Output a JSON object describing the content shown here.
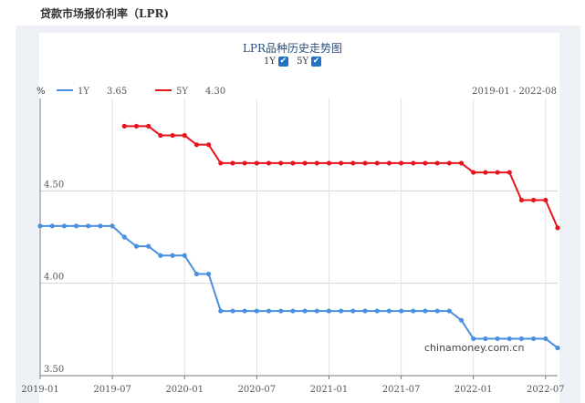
{
  "page_title": "贷款市场报价利率（LPR)",
  "chart_title": "LPR品种历史走势图",
  "toggles": [
    {
      "label": "1Y",
      "checked": true
    },
    {
      "label": "5Y",
      "checked": true
    }
  ],
  "check_glyph": "✔",
  "unit_label": "%",
  "date_range": "2019-01 - 2022-08",
  "watermark": "chinamoney.com.cn",
  "chart_data": {
    "type": "line",
    "x": [
      "2019-01",
      "2019-02",
      "2019-03",
      "2019-04",
      "2019-05",
      "2019-06",
      "2019-07",
      "2019-08",
      "2019-09",
      "2019-10",
      "2019-11",
      "2019-12",
      "2020-01",
      "2020-02",
      "2020-03",
      "2020-04",
      "2020-05",
      "2020-06",
      "2020-07",
      "2020-08",
      "2020-09",
      "2020-10",
      "2020-11",
      "2020-12",
      "2021-01",
      "2021-02",
      "2021-03",
      "2021-04",
      "2021-05",
      "2021-06",
      "2021-07",
      "2021-08",
      "2021-09",
      "2021-10",
      "2021-11",
      "2021-12",
      "2022-01",
      "2022-02",
      "2022-03",
      "2022-04",
      "2022-05",
      "2022-06",
      "2022-07",
      "2022-08"
    ],
    "series": [
      {
        "name": "1Y",
        "latest": "3.65",
        "color": "#4a8fe0",
        "values": [
          4.31,
          4.31,
          4.31,
          4.31,
          4.31,
          4.31,
          4.31,
          4.25,
          4.2,
          4.2,
          4.15,
          4.15,
          4.15,
          4.05,
          4.05,
          3.85,
          3.85,
          3.85,
          3.85,
          3.85,
          3.85,
          3.85,
          3.85,
          3.85,
          3.85,
          3.85,
          3.85,
          3.85,
          3.85,
          3.85,
          3.85,
          3.85,
          3.85,
          3.85,
          3.85,
          3.8,
          3.7,
          3.7,
          3.7,
          3.7,
          3.7,
          3.7,
          3.7,
          3.65
        ]
      },
      {
        "name": "5Y",
        "latest": "4.30",
        "color": "#e8141c",
        "values": [
          null,
          null,
          null,
          null,
          null,
          null,
          null,
          4.85,
          4.85,
          4.85,
          4.8,
          4.8,
          4.8,
          4.75,
          4.75,
          4.65,
          4.65,
          4.65,
          4.65,
          4.65,
          4.65,
          4.65,
          4.65,
          4.65,
          4.65,
          4.65,
          4.65,
          4.65,
          4.65,
          4.65,
          4.65,
          4.65,
          4.65,
          4.65,
          4.65,
          4.65,
          4.6,
          4.6,
          4.6,
          4.6,
          4.45,
          4.45,
          4.45,
          4.3
        ]
      }
    ],
    "x_tick_labels": [
      "2019-01",
      "2019-07",
      "2020-01",
      "2020-07",
      "2021-01",
      "2021-07",
      "2022-01",
      "2022-07"
    ],
    "y_ticks": [
      "3.50",
      "4.00",
      "4.50"
    ],
    "ylim": [
      3.5,
      5.0
    ],
    "grid": true,
    "legend_position": "top-left"
  }
}
